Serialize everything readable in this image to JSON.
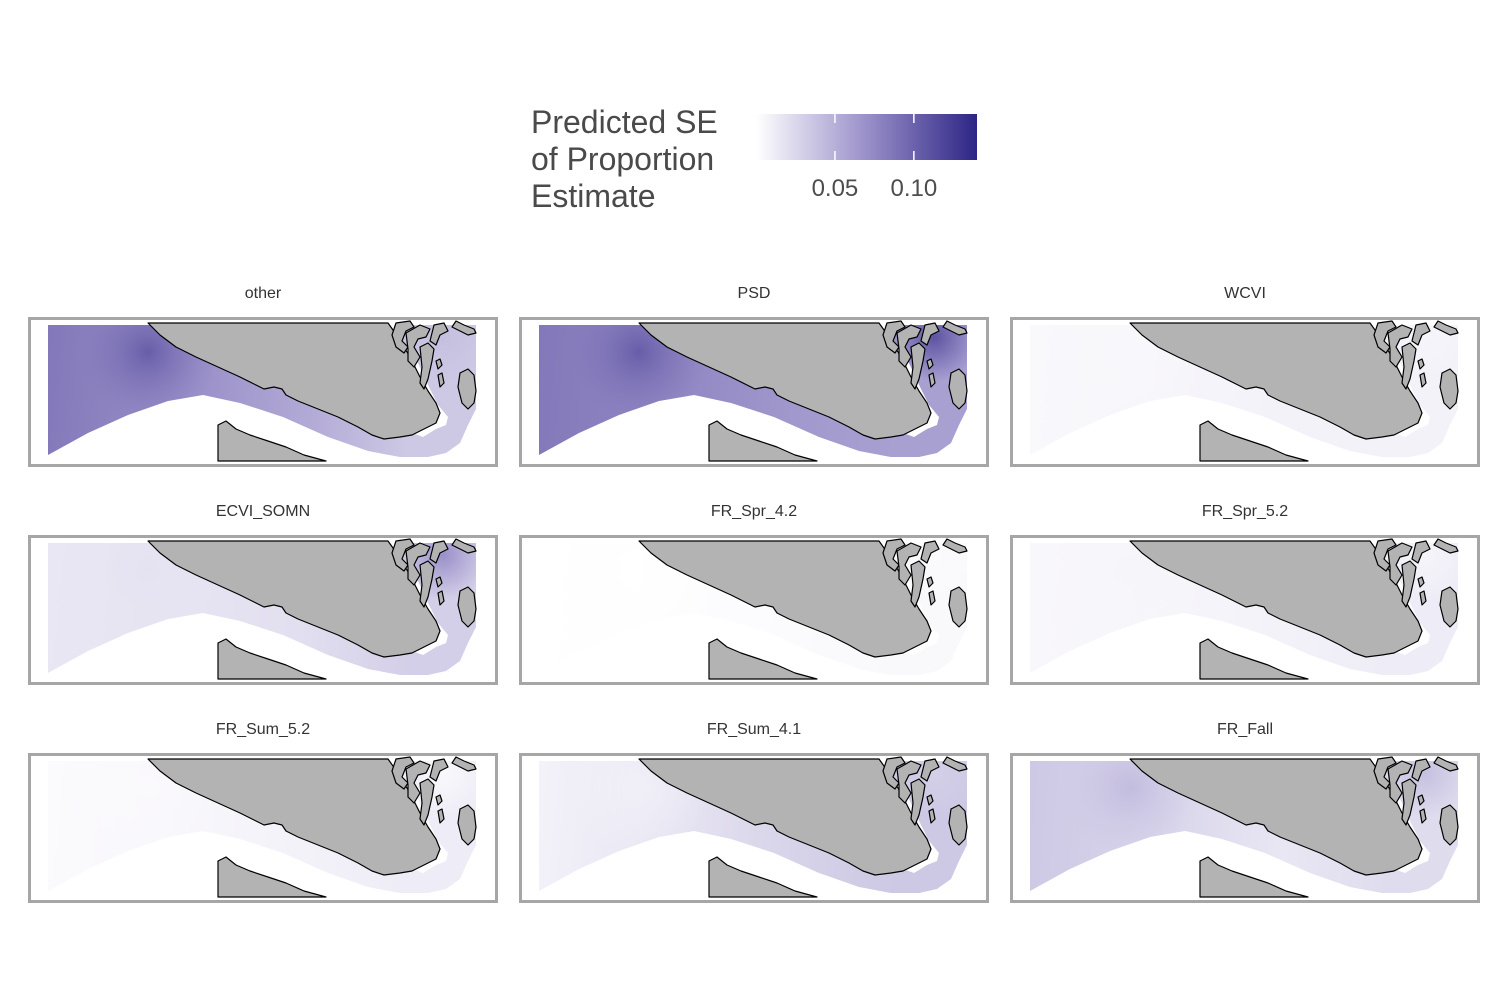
{
  "legend": {
    "title": "Predicted SE\nof Proportion\nEstimate",
    "ticks": [
      {
        "label": "0.05",
        "value": 0.05
      },
      {
        "label": "0.10",
        "value": 0.1
      }
    ],
    "range": [
      0.0,
      0.14
    ],
    "color_low": "#ffffff",
    "color_high": "#2d2585"
  },
  "colors": {
    "land": "#b3b3b3",
    "coast_stroke": "#000000",
    "panel_border": "#a6a6a6"
  },
  "panels": [
    {
      "name": "other",
      "west": 0.085,
      "strait": 0.055,
      "east": 0.035,
      "sound": 0.04
    },
    {
      "name": "PSD",
      "west": 0.085,
      "strait": 0.065,
      "east": 0.06,
      "sound": 0.11
    },
    {
      "name": "WCVI",
      "west": 0.004,
      "strait": 0.008,
      "east": 0.008,
      "sound": 0.006
    },
    {
      "name": "ECVI_SOMN",
      "west": 0.015,
      "strait": 0.02,
      "east": 0.03,
      "sound": 0.07
    },
    {
      "name": "FR_Spr_4.2",
      "west": 0.0,
      "strait": 0.003,
      "east": 0.004,
      "sound": 0.003
    },
    {
      "name": "FR_Spr_5.2",
      "west": 0.005,
      "strait": 0.008,
      "east": 0.012,
      "sound": 0.006
    },
    {
      "name": "FR_Sum_5.2",
      "west": 0.003,
      "strait": 0.008,
      "east": 0.012,
      "sound": 0.004
    },
    {
      "name": "FR_Sum_4.1",
      "west": 0.008,
      "strait": 0.028,
      "east": 0.035,
      "sound": 0.03
    },
    {
      "name": "FR_Fall",
      "west": 0.035,
      "strait": 0.015,
      "east": 0.022,
      "sound": 0.04
    }
  ]
}
